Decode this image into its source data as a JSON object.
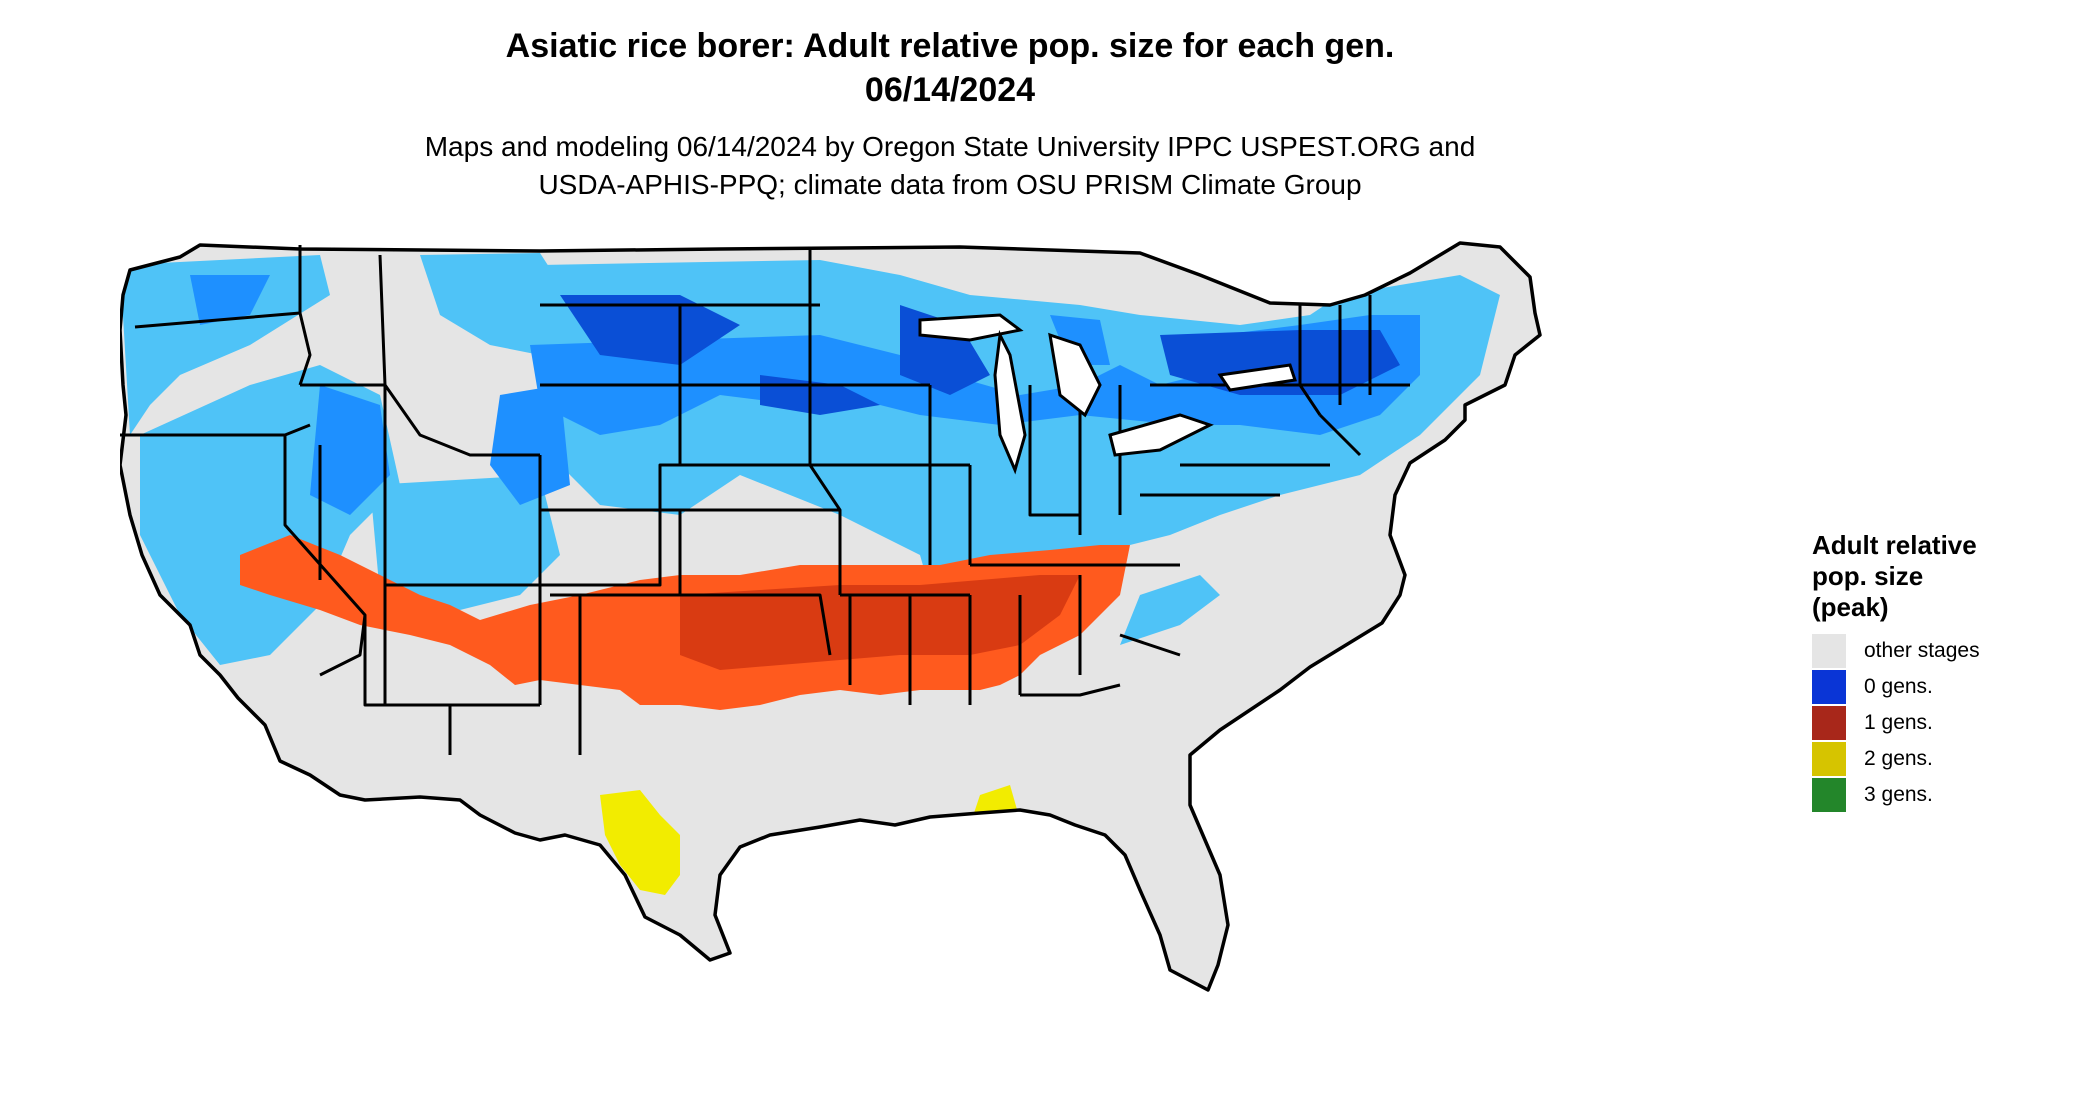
{
  "title": {
    "line1": "Asiatic rice borer: Adult relative pop. size for each gen.",
    "line2": "06/14/2024"
  },
  "subtitle": {
    "line1": "Maps and modeling 06/14/2024 by Oregon State University IPPC USPEST.ORG and",
    "line2": "USDA-APHIS-PPQ; climate data from OSU PRISM Climate Group"
  },
  "legend": {
    "title_line1": "Adult relative",
    "title_line2": "pop. size",
    "title_line3": "(peak)",
    "items": [
      {
        "label": "other stages",
        "color": "#e5e5e5"
      },
      {
        "label": "0 gens.",
        "color": "#0a35d6"
      },
      {
        "label": "1 gens.",
        "color": "#a8271a"
      },
      {
        "label": "2 gens.",
        "color": "#d6c400"
      },
      {
        "label": "3 gens.",
        "color": "#23862a"
      }
    ]
  },
  "map": {
    "region": "Contiguous United States",
    "colors": {
      "background_land": "#e5e5e5",
      "zero_gen_light": "#4fc3f7",
      "zero_gen_mid": "#1e90ff",
      "zero_gen_dark": "#0a4fd6",
      "one_gen_light": "#ff5a1e",
      "one_gen_dark": "#d93b12",
      "two_gen": "#f2ec00",
      "border": "#000000"
    }
  }
}
